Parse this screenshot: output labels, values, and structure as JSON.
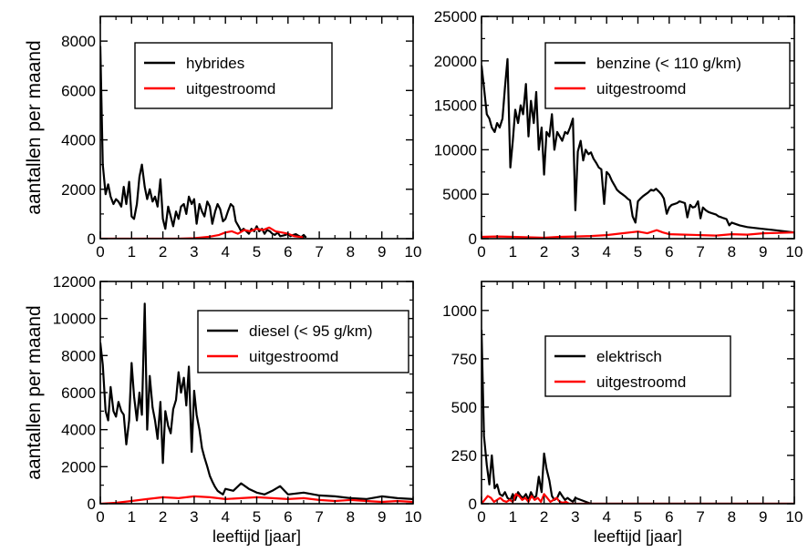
{
  "figure": {
    "shared_ylabel": "aantallen per maand",
    "shared_xlabel": "leeftijd [jaar]"
  },
  "chart_data": [
    {
      "type": "line",
      "xlim": [
        0,
        10
      ],
      "ylim": [
        0,
        9000
      ],
      "xticks": [
        0,
        1,
        2,
        3,
        4,
        5,
        6,
        7,
        8,
        9,
        10
      ],
      "yticks": [
        0,
        2000,
        4000,
        6000,
        8000
      ],
      "ylabel": "aantallen per maand",
      "xlabel": "",
      "legend_position": "top-center",
      "series": [
        {
          "name": "hybrides",
          "color": "#000000",
          "x": [
            0,
            0.08,
            0.17,
            0.25,
            0.33,
            0.42,
            0.5,
            0.58,
            0.67,
            0.75,
            0.83,
            0.92,
            1.0,
            1.08,
            1.17,
            1.25,
            1.33,
            1.42,
            1.5,
            1.58,
            1.67,
            1.75,
            1.83,
            1.92,
            2.0,
            2.08,
            2.17,
            2.25,
            2.33,
            2.42,
            2.5,
            2.58,
            2.67,
            2.75,
            2.83,
            2.92,
            3.0,
            3.08,
            3.17,
            3.25,
            3.33,
            3.42,
            3.5,
            3.58,
            3.67,
            3.75,
            3.83,
            3.92,
            4.0,
            4.08,
            4.17,
            4.25,
            4.33,
            4.42,
            4.5,
            4.58,
            4.67,
            4.75,
            4.83,
            4.92,
            5.0,
            5.08,
            5.17,
            5.25,
            5.33,
            5.42,
            5.5,
            5.58,
            5.67,
            5.75,
            5.83,
            5.92,
            6.0,
            6.08,
            6.17,
            6.25,
            6.33,
            6.42,
            6.5,
            6.58
          ],
          "y": [
            7800,
            3000,
            1800,
            2200,
            1700,
            1400,
            1600,
            1500,
            1300,
            2100,
            1400,
            2300,
            900,
            800,
            1400,
            2500,
            3000,
            2100,
            1600,
            2000,
            1500,
            1700,
            1300,
            2400,
            800,
            400,
            1300,
            900,
            500,
            1100,
            800,
            1300,
            1400,
            1000,
            1700,
            1400,
            1600,
            600,
            1400,
            1100,
            900,
            1500,
            1300,
            600,
            1100,
            1400,
            1200,
            700,
            800,
            1100,
            1400,
            1300,
            700,
            500,
            300,
            400,
            300,
            200,
            400,
            300,
            500,
            300,
            400,
            200,
            350,
            300,
            200,
            150,
            250,
            100,
            120,
            150,
            200,
            100,
            150,
            180,
            120,
            60,
            150,
            40
          ]
        },
        {
          "name": "uitgestroomd",
          "color": "#ff0000",
          "x": [
            0,
            1.0,
            2.0,
            2.5,
            3.0,
            3.5,
            3.8,
            4.0,
            4.2,
            4.4,
            4.6,
            4.8,
            5.0,
            5.2,
            5.4,
            5.6,
            5.8,
            6.0,
            6.2,
            6.5
          ],
          "y": [
            0,
            0,
            0,
            0,
            20,
            80,
            150,
            250,
            300,
            200,
            350,
            300,
            400,
            350,
            450,
            300,
            250,
            200,
            100,
            50
          ]
        }
      ]
    },
    {
      "type": "line",
      "xlim": [
        0,
        10
      ],
      "ylim": [
        0,
        25000
      ],
      "xticks": [
        0,
        1,
        2,
        3,
        4,
        5,
        6,
        7,
        8,
        9,
        10
      ],
      "yticks": [
        0,
        5000,
        10000,
        15000,
        20000,
        25000
      ],
      "ylabel": "",
      "xlabel": "",
      "legend_position": "top-right",
      "series": [
        {
          "name": "benzine (< 110 g/km)",
          "color": "#000000",
          "x": [
            0,
            0.08,
            0.17,
            0.25,
            0.33,
            0.42,
            0.5,
            0.58,
            0.67,
            0.75,
            0.83,
            0.92,
            1.0,
            1.08,
            1.17,
            1.25,
            1.33,
            1.42,
            1.5,
            1.58,
            1.67,
            1.75,
            1.83,
            1.92,
            2.0,
            2.08,
            2.17,
            2.25,
            2.33,
            2.42,
            2.5,
            2.58,
            2.67,
            2.75,
            2.83,
            2.92,
            3.0,
            3.08,
            3.17,
            3.25,
            3.33,
            3.42,
            3.5,
            3.58,
            3.67,
            3.75,
            3.83,
            3.92,
            4.0,
            4.08,
            4.17,
            4.25,
            4.33,
            4.42,
            4.5,
            4.58,
            4.67,
            4.75,
            4.83,
            4.92,
            5.0,
            5.08,
            5.17,
            5.25,
            5.33,
            5.42,
            5.5,
            5.58,
            5.67,
            5.75,
            5.83,
            5.92,
            6.0,
            6.08,
            6.17,
            6.25,
            6.33,
            6.42,
            6.5,
            6.58,
            6.67,
            6.75,
            6.83,
            6.92,
            7.0,
            7.08,
            7.17,
            7.25,
            7.33,
            7.42,
            7.5,
            7.58,
            7.67,
            7.75,
            7.83,
            7.92,
            8.0,
            8.25,
            8.5,
            8.75,
            9.0,
            9.25,
            9.5,
            9.75,
            10.0
          ],
          "y": [
            19500,
            17000,
            14000,
            13500,
            12500,
            12000,
            13000,
            12500,
            13500,
            17000,
            20200,
            8000,
            11000,
            14500,
            13000,
            15000,
            14000,
            17400,
            11500,
            15500,
            13000,
            16500,
            10000,
            12500,
            7200,
            12000,
            11500,
            14000,
            10000,
            12000,
            11500,
            11000,
            12000,
            11800,
            12500,
            13500,
            3200,
            9800,
            11000,
            8800,
            10000,
            9500,
            9700,
            9000,
            8500,
            8000,
            7800,
            3900,
            7500,
            7200,
            6500,
            6000,
            5500,
            5200,
            5000,
            4800,
            4500,
            4300,
            2500,
            1800,
            4200,
            4500,
            4800,
            5000,
            5200,
            5500,
            5400,
            5600,
            5300,
            5000,
            4500,
            2800,
            3500,
            3800,
            3900,
            4000,
            4200,
            4100,
            4000,
            2400,
            3800,
            3500,
            3600,
            4200,
            2300,
            3500,
            3200,
            3000,
            2900,
            2800,
            2700,
            2500,
            2400,
            2300,
            2200,
            1500,
            1800,
            1500,
            1300,
            1200,
            1100,
            1000,
            900,
            800,
            700
          ]
        },
        {
          "name": "uitgestroomd",
          "color": "#ff0000",
          "x": [
            0,
            0.5,
            1.0,
            1.5,
            2.0,
            2.5,
            3.0,
            3.5,
            4.0,
            4.5,
            5.0,
            5.3,
            5.6,
            5.8,
            6.0,
            6.5,
            7.0,
            7.5,
            8.0,
            8.5,
            9.0,
            9.5,
            10.0
          ],
          "y": [
            200,
            250,
            200,
            150,
            100,
            200,
            250,
            300,
            400,
            600,
            800,
            600,
            950,
            700,
            500,
            450,
            400,
            350,
            500,
            450,
            600,
            650,
            700
          ]
        }
      ]
    },
    {
      "type": "line",
      "xlim": [
        0,
        10
      ],
      "ylim": [
        0,
        12000
      ],
      "xticks": [
        0,
        1,
        2,
        3,
        4,
        5,
        6,
        7,
        8,
        9,
        10
      ],
      "yticks": [
        0,
        2000,
        4000,
        6000,
        8000,
        10000,
        12000
      ],
      "ylabel": "aantallen per maand",
      "xlabel": "leeftijd [jaar]",
      "legend_position": "top-right",
      "series": [
        {
          "name": "diesel (< 95 g/km)",
          "color": "#000000",
          "x": [
            0,
            0.08,
            0.17,
            0.25,
            0.33,
            0.42,
            0.5,
            0.58,
            0.67,
            0.75,
            0.83,
            0.92,
            1.0,
            1.08,
            1.17,
            1.25,
            1.33,
            1.42,
            1.5,
            1.58,
            1.67,
            1.75,
            1.83,
            1.92,
            2.0,
            2.08,
            2.17,
            2.25,
            2.33,
            2.42,
            2.5,
            2.58,
            2.67,
            2.75,
            2.83,
            2.92,
            3.0,
            3.08,
            3.17,
            3.25,
            3.33,
            3.42,
            3.5,
            3.58,
            3.67,
            3.75,
            3.83,
            3.92,
            4.0,
            4.25,
            4.5,
            4.75,
            5.0,
            5.25,
            5.5,
            5.75,
            6.0,
            6.5,
            7.0,
            7.5,
            8.0,
            8.5,
            9.0,
            9.5,
            10.0
          ],
          "y": [
            8700,
            7500,
            5000,
            4500,
            6300,
            5000,
            4700,
            5500,
            5000,
            4800,
            3200,
            4500,
            7600,
            5800,
            4500,
            6000,
            4800,
            10800,
            4000,
            6900,
            5200,
            4500,
            3500,
            5500,
            2200,
            5000,
            4200,
            3800,
            5100,
            5600,
            7100,
            6000,
            6800,
            5300,
            7400,
            2800,
            6100,
            4800,
            4000,
            3000,
            2500,
            2000,
            1500,
            1200,
            900,
            700,
            600,
            500,
            800,
            700,
            1100,
            800,
            600,
            500,
            700,
            950,
            500,
            600,
            450,
            400,
            300,
            250,
            400,
            300,
            250
          ]
        },
        {
          "name": "uitgestroomd",
          "color": "#ff0000",
          "x": [
            0,
            0.5,
            1.0,
            1.5,
            2.0,
            2.5,
            3.0,
            3.5,
            4.0,
            4.5,
            5.0,
            5.5,
            6.0,
            6.5,
            7.0,
            7.5,
            8.0,
            8.5,
            9.0,
            9.5,
            10.0
          ],
          "y": [
            0,
            50,
            150,
            250,
            350,
            300,
            400,
            350,
            250,
            300,
            350,
            300,
            250,
            300,
            200,
            150,
            200,
            150,
            100,
            150,
            100
          ]
        }
      ]
    },
    {
      "type": "line",
      "xlim": [
        0,
        10
      ],
      "ylim": [
        0,
        1150
      ],
      "xticks": [
        0,
        1,
        2,
        3,
        4,
        5,
        6,
        7,
        8,
        9,
        10
      ],
      "yticks": [
        0,
        250,
        500,
        750,
        1000
      ],
      "ylabel": "",
      "xlabel": "leeftijd [jaar]",
      "legend_position": "center",
      "series": [
        {
          "name": "elektrisch",
          "color": "#000000",
          "x": [
            0,
            0.08,
            0.17,
            0.25,
            0.33,
            0.42,
            0.5,
            0.58,
            0.67,
            0.75,
            0.83,
            0.92,
            1.0,
            1.08,
            1.17,
            1.25,
            1.33,
            1.42,
            1.5,
            1.58,
            1.67,
            1.75,
            1.83,
            1.92,
            2.0,
            2.08,
            2.17,
            2.25,
            2.33,
            2.42,
            2.5,
            2.58,
            2.67,
            2.75,
            2.83,
            2.92,
            3.0,
            3.5,
            4.0,
            5.0,
            6.0,
            7.0,
            8.0,
            9.0,
            10.0
          ],
          "y": [
            900,
            350,
            200,
            100,
            250,
            80,
            100,
            50,
            40,
            60,
            30,
            20,
            50,
            20,
            60,
            40,
            30,
            50,
            20,
            60,
            30,
            40,
            140,
            60,
            260,
            180,
            120,
            40,
            20,
            30,
            60,
            40,
            20,
            30,
            20,
            10,
            30,
            0,
            0,
            0,
            0,
            0,
            0,
            0,
            0
          ]
        },
        {
          "name": "uitgestroomd",
          "color": "#ff0000",
          "x": [
            0,
            0.1,
            0.2,
            0.3,
            0.4,
            0.5,
            0.6,
            0.7,
            0.8,
            0.9,
            1.0,
            1.1,
            1.2,
            1.3,
            1.4,
            1.5,
            1.6,
            1.7,
            1.8,
            1.9,
            2.0,
            2.1,
            2.2,
            2.3,
            2.4,
            2.5,
            2.6,
            2.7,
            2.8,
            3.0,
            3.5,
            4.0,
            5.0,
            6.0,
            7.0,
            8.0,
            9.0,
            10.0
          ],
          "y": [
            0,
            20,
            40,
            30,
            10,
            20,
            30,
            15,
            10,
            20,
            10,
            50,
            40,
            20,
            30,
            10,
            40,
            20,
            30,
            10,
            50,
            30,
            10,
            20,
            30,
            10,
            5,
            10,
            0,
            0,
            0,
            0,
            0,
            0,
            0,
            0,
            0,
            0
          ]
        }
      ]
    }
  ]
}
